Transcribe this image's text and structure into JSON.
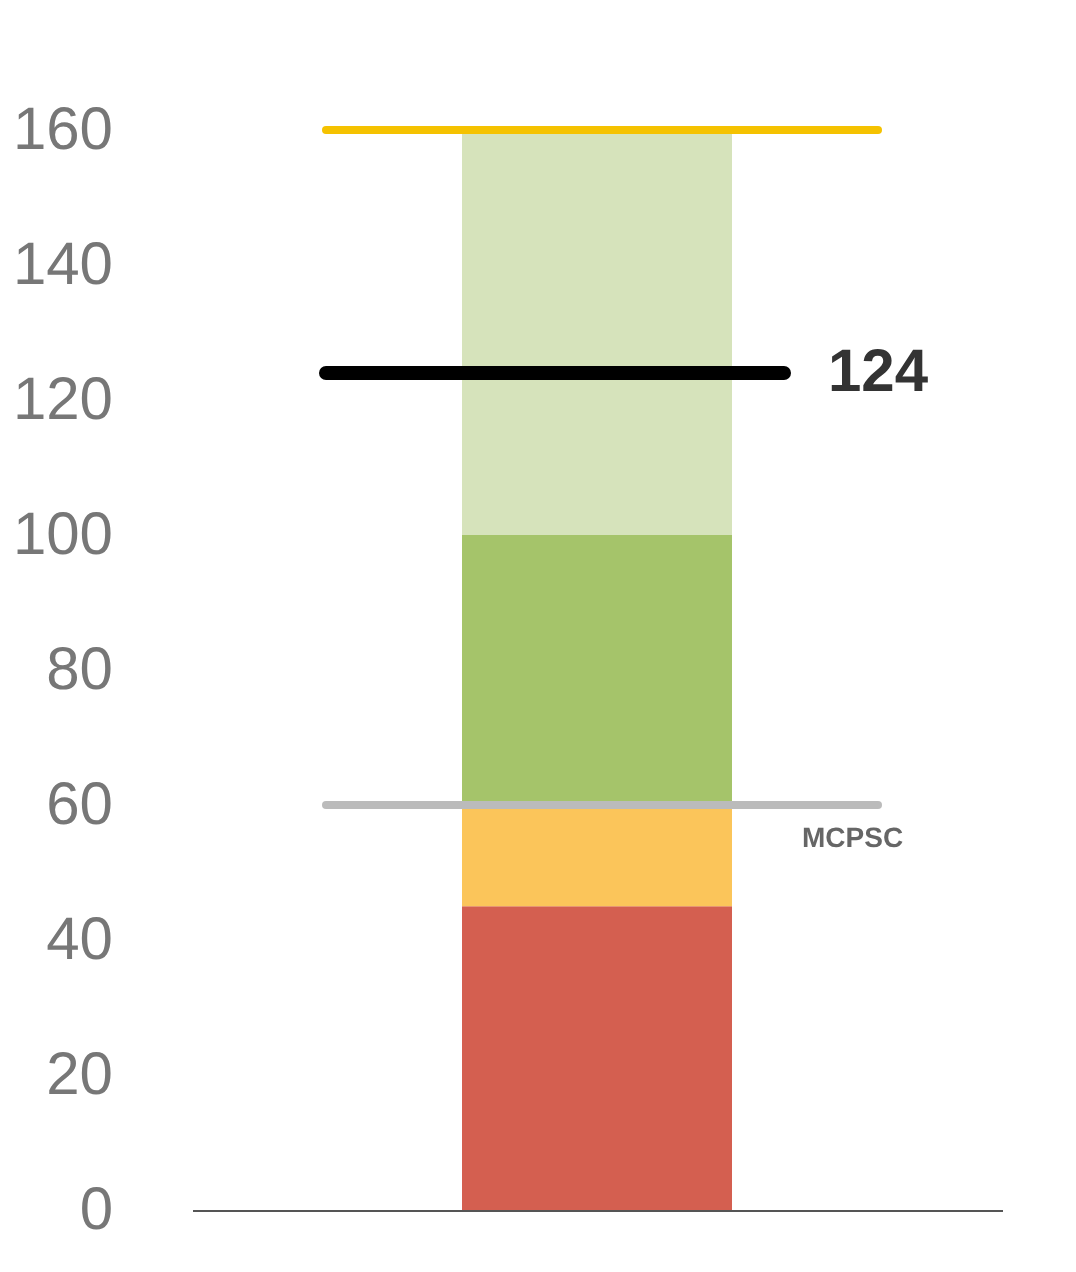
{
  "chart_data": {
    "type": "bar",
    "stacked": true,
    "categories": [
      null
    ],
    "series": [
      {
        "color": "#d45f50",
        "values": [
          45
        ]
      },
      {
        "color": "#fbc55a",
        "values": [
          15
        ]
      },
      {
        "color": "#a5c46a",
        "values": [
          40
        ]
      },
      {
        "color": "#d6e3bb",
        "values": [
          60
        ]
      }
    ],
    "ylim": [
      0,
      160
    ],
    "yticks": [
      0,
      20,
      40,
      60,
      80,
      100,
      120,
      140,
      160
    ],
    "grid": false,
    "tick_labels": "y",
    "ref_lines": [
      {
        "axis": "y",
        "value": 160,
        "color": "#f5c200"
      },
      {
        "axis": "y",
        "value": 124,
        "color": "#000000",
        "label": "124"
      },
      {
        "axis": "y",
        "value": 60,
        "color": "#bbbbbb",
        "label": "MCPSC"
      }
    ]
  }
}
